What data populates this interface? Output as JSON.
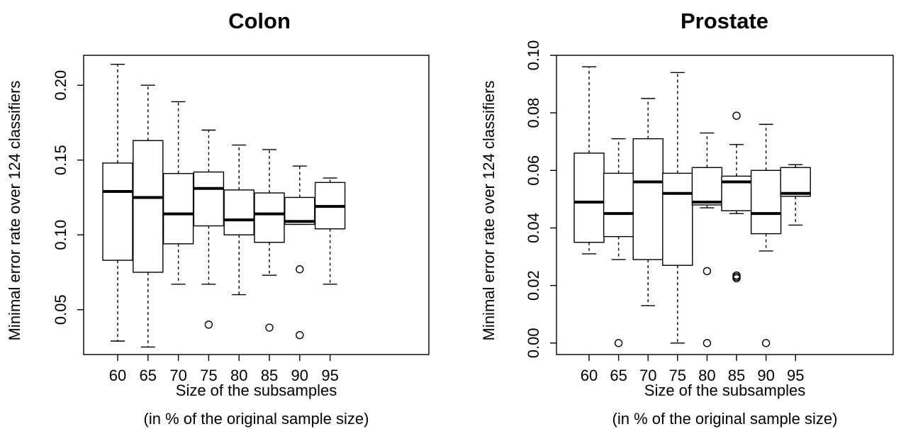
{
  "chart_data": [
    {
      "type": "boxplot",
      "title": "Colon",
      "xlabel": "Size of the subsamples",
      "xlabel2": "(in % of the original sample size)",
      "ylabel": "Minimal error rate over 124 classifiers",
      "categories": [
        "60",
        "65",
        "70",
        "75",
        "80",
        "85",
        "90",
        "95"
      ],
      "yticks": [
        0.05,
        0.1,
        0.15,
        0.2
      ],
      "ytick_labels": [
        "0.05",
        "0.10",
        "0.15",
        "0.20"
      ],
      "ylim": [
        0.02,
        0.22
      ],
      "boxes": [
        {
          "whisker_low": 0.029,
          "q1": 0.083,
          "median": 0.129,
          "q3": 0.148,
          "whisker_high": 0.214,
          "outliers": []
        },
        {
          "whisker_low": 0.025,
          "q1": 0.075,
          "median": 0.125,
          "q3": 0.163,
          "whisker_high": 0.2,
          "outliers": []
        },
        {
          "whisker_low": 0.067,
          "q1": 0.094,
          "median": 0.114,
          "q3": 0.141,
          "whisker_high": 0.189,
          "outliers": []
        },
        {
          "whisker_low": 0.067,
          "q1": 0.106,
          "median": 0.131,
          "q3": 0.142,
          "whisker_high": 0.17,
          "outliers": [
            0.04
          ]
        },
        {
          "whisker_low": 0.06,
          "q1": 0.1,
          "median": 0.11,
          "q3": 0.13,
          "whisker_high": 0.16,
          "outliers": []
        },
        {
          "whisker_low": 0.073,
          "q1": 0.095,
          "median": 0.114,
          "q3": 0.128,
          "whisker_high": 0.157,
          "outliers": [
            0.038
          ]
        },
        {
          "whisker_low": 0.107,
          "q1": 0.107,
          "median": 0.109,
          "q3": 0.125,
          "whisker_high": 0.146,
          "outliers": [
            0.077,
            0.033
          ]
        },
        {
          "whisker_low": 0.067,
          "q1": 0.104,
          "median": 0.119,
          "q3": 0.135,
          "whisker_high": 0.138,
          "outliers": []
        }
      ]
    },
    {
      "type": "boxplot",
      "title": "Prostate",
      "xlabel": "Size of the subsamples",
      "xlabel2": "(in % of the original sample size)",
      "ylabel": "Minimal error rate over 124 classifiers",
      "categories": [
        "60",
        "65",
        "70",
        "75",
        "80",
        "85",
        "90",
        "95"
      ],
      "yticks": [
        0.0,
        0.02,
        0.04,
        0.06,
        0.08,
        0.1
      ],
      "ytick_labels": [
        "0.00",
        "0.02",
        "0.04",
        "0.06",
        "0.08",
        "0.10"
      ],
      "ylim": [
        -0.004,
        0.1
      ],
      "boxes": [
        {
          "whisker_low": 0.031,
          "q1": 0.035,
          "median": 0.049,
          "q3": 0.066,
          "whisker_high": 0.096,
          "outliers": []
        },
        {
          "whisker_low": 0.029,
          "q1": 0.037,
          "median": 0.045,
          "q3": 0.059,
          "whisker_high": 0.071,
          "outliers": [
            0.0
          ]
        },
        {
          "whisker_low": 0.013,
          "q1": 0.029,
          "median": 0.056,
          "q3": 0.071,
          "whisker_high": 0.085,
          "outliers": []
        },
        {
          "whisker_low": 0.0,
          "q1": 0.027,
          "median": 0.052,
          "q3": 0.059,
          "whisker_high": 0.094,
          "outliers": []
        },
        {
          "whisker_low": 0.047,
          "q1": 0.048,
          "median": 0.049,
          "q3": 0.061,
          "whisker_high": 0.073,
          "outliers": [
            0.025,
            0.0
          ]
        },
        {
          "whisker_low": 0.045,
          "q1": 0.046,
          "median": 0.056,
          "q3": 0.058,
          "whisker_high": 0.069,
          "outliers": [
            0.079,
            0.0235,
            0.023,
            0.0225
          ]
        },
        {
          "whisker_low": 0.032,
          "q1": 0.038,
          "median": 0.045,
          "q3": 0.06,
          "whisker_high": 0.076,
          "outliers": [
            0.0
          ]
        },
        {
          "whisker_low": 0.041,
          "q1": 0.051,
          "median": 0.052,
          "q3": 0.061,
          "whisker_high": 0.062,
          "outliers": []
        }
      ]
    }
  ]
}
